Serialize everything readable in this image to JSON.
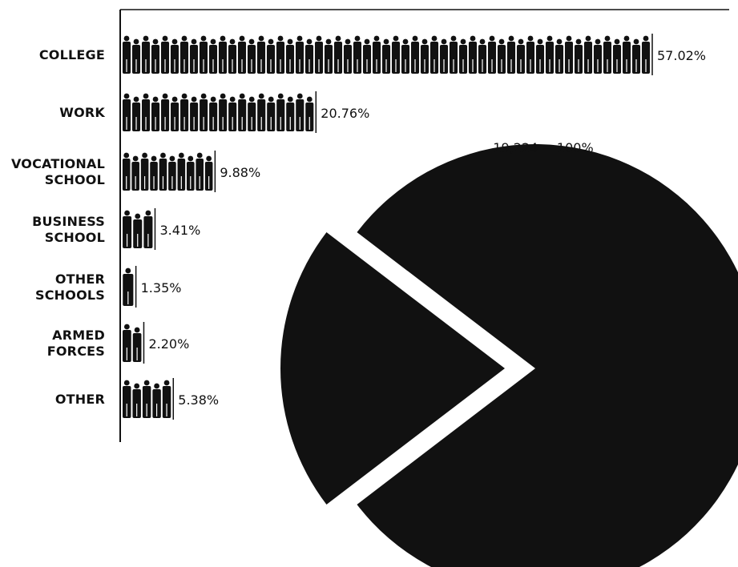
{
  "chart_data": [
    {
      "type": "bar",
      "orientation": "horizontal",
      "style": "pictograph",
      "categories": [
        [
          "COLLEGE"
        ],
        [
          "WORK"
        ],
        [
          "VOCATIONAL",
          "SCHOOL"
        ],
        [
          "BUSINESS",
          "SCHOOL"
        ],
        [
          "OTHER",
          "SCHOOLS"
        ],
        [
          "ARMED",
          "FORCES"
        ],
        [
          "OTHER"
        ]
      ],
      "values": [
        57.02,
        20.76,
        9.88,
        3.41,
        1.35,
        2.2,
        5.38
      ],
      "value_labels": [
        "57.02%",
        "20.76%",
        "9.88%",
        "3.41%",
        "1.35%",
        "2.20%",
        "5.38%"
      ],
      "xlim": [
        0,
        57.02
      ],
      "color": "#111111"
    },
    {
      "type": "pie",
      "label": "19,224 = 100%",
      "values": [
        20.76,
        79.24
      ],
      "exploded": [
        true,
        false
      ],
      "color": "#111111"
    }
  ]
}
